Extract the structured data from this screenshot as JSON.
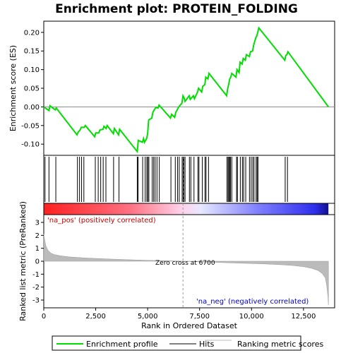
{
  "chart_data": {
    "type": "line",
    "title": "Enrichment plot: PROTEIN_FOLDING",
    "top_panel": {
      "ylabel": "Enrichment score (ES)",
      "ylim": [
        -0.13,
        0.23
      ],
      "yticks": [
        -0.1,
        -0.05,
        0.0,
        0.05,
        0.1,
        0.15,
        0.2
      ],
      "ytick_labels": [
        "-0.10",
        "-0.05",
        "0.00",
        "0.05",
        "0.10",
        "0.15",
        "0.20"
      ],
      "series": [
        {
          "name": "Enrichment profile",
          "color": "#00dd00",
          "x": [
            0,
            250,
            300,
            550,
            600,
            1600,
            1650,
            1750,
            1800,
            1950,
            2000,
            2450,
            2500,
            2650,
            2700,
            2850,
            2900,
            3000,
            3050,
            3350,
            3400,
            3600,
            3650,
            4500,
            4550,
            4750,
            4800,
            4850,
            4950,
            5000,
            5050,
            5200,
            5250,
            5350,
            5400,
            5500,
            5550,
            6100,
            6150,
            6300,
            6350,
            6450,
            6500,
            6650,
            6700,
            6750,
            6800,
            7000,
            7050,
            7200,
            7250,
            7400,
            7450,
            7600,
            7650,
            7750,
            7800,
            7900,
            7950,
            8800,
            8850,
            8900,
            8950,
            9000,
            9050,
            9250,
            9300,
            9400,
            9450,
            9550,
            9600,
            9700,
            9750,
            9900,
            9950,
            10050,
            10100,
            10200,
            10250,
            10300,
            10350,
            11600,
            11650,
            11700,
            11750,
            13700
          ],
          "y": [
            0.0,
            -0.01,
            0.003,
            -0.008,
            -0.003,
            -0.075,
            -0.068,
            -0.062,
            -0.055,
            -0.055,
            -0.05,
            -0.08,
            -0.07,
            -0.07,
            -0.062,
            -0.06,
            -0.052,
            -0.058,
            -0.05,
            -0.072,
            -0.058,
            -0.075,
            -0.06,
            -0.12,
            -0.09,
            -0.095,
            -0.085,
            -0.095,
            -0.085,
            -0.072,
            -0.035,
            -0.03,
            -0.015,
            -0.005,
            -0.002,
            -0.003,
            0.005,
            -0.03,
            -0.02,
            -0.028,
            -0.015,
            -0.005,
            0.0,
            0.01,
            0.03,
            0.025,
            0.015,
            0.03,
            0.02,
            0.03,
            0.022,
            0.04,
            0.05,
            0.04,
            0.055,
            0.06,
            0.08,
            0.075,
            0.09,
            0.03,
            0.048,
            0.06,
            0.075,
            0.08,
            0.09,
            0.08,
            0.1,
            0.092,
            0.12,
            0.115,
            0.13,
            0.125,
            0.14,
            0.135,
            0.148,
            0.15,
            0.165,
            0.185,
            0.19,
            0.2,
            0.212,
            0.125,
            0.138,
            0.14,
            0.148,
            0.0
          ]
        }
      ],
      "hits": [
        60,
        250,
        580,
        1620,
        1720,
        1820,
        1930,
        2480,
        2620,
        2740,
        2860,
        2990,
        3360,
        3620,
        4500,
        4540,
        4760,
        4880,
        4960,
        5010,
        5060,
        5220,
        5290,
        5360,
        5450,
        5560,
        6120,
        6330,
        6440,
        6520,
        6660,
        6710,
        6740,
        6800,
        7010,
        7080,
        7230,
        7420,
        7470,
        7630,
        7760,
        7810,
        7930,
        8820,
        8870,
        8910,
        8950,
        8990,
        9050,
        9280,
        9320,
        9460,
        9560,
        9620,
        9720,
        9900,
        9980,
        10060,
        10120,
        10220,
        10270,
        10310,
        11620,
        11730
      ]
    },
    "bottom_panel": {
      "ylabel": "Ranked list metric (PreRanked)",
      "xlabel": "Rank in Ordered Dataset",
      "ylim": [
        -3.6,
        3.6
      ],
      "yticks": [
        -3,
        -2,
        -1,
        0,
        1,
        2,
        3
      ],
      "ytick_labels": [
        "-3",
        "-2",
        "-1",
        "0",
        "1",
        "2",
        "3"
      ],
      "metric_x": [
        0,
        50,
        100,
        200,
        350,
        500,
        800,
        1200,
        2000,
        3000,
        4000,
        5000,
        6000,
        6700,
        7500,
        8500,
        9500,
        10500,
        11500,
        12000,
        12500,
        12900,
        13200,
        13400,
        13550,
        13620,
        13680,
        13700
      ],
      "metric_y": [
        2.1,
        1.6,
        1.2,
        0.85,
        0.62,
        0.52,
        0.42,
        0.34,
        0.25,
        0.18,
        0.12,
        0.07,
        0.03,
        0.0,
        -0.05,
        -0.1,
        -0.15,
        -0.2,
        -0.28,
        -0.33,
        -0.42,
        -0.55,
        -0.72,
        -0.95,
        -1.3,
        -1.9,
        -2.8,
        -3.4
      ]
    },
    "xlim": [
      0,
      14000
    ],
    "xticks": [
      0,
      2500,
      5000,
      7500,
      10000,
      12500
    ],
    "xtick_labels": [
      "0",
      "2,500",
      "5,000",
      "7,500",
      "10,000",
      "12,500"
    ],
    "zero_cross": 6700,
    "n_genes": 13700,
    "annotations": {
      "pos_label": "'na_pos' (positively correlated)",
      "neg_label": "'na_neg' (negatively correlated)",
      "zero_label": "Zero cross at 6700"
    },
    "legend": [
      {
        "label": "Enrichment profile",
        "color": "#00dd00"
      },
      {
        "label": "Hits",
        "color": "#000000"
      },
      {
        "label": "Ranking metric scores",
        "color": "#bbbbbb"
      }
    ],
    "colors": {
      "pos": "#ff0000",
      "mid": "#ffffff",
      "neg": "#0000ff",
      "metric": "#bbbbbb"
    }
  }
}
